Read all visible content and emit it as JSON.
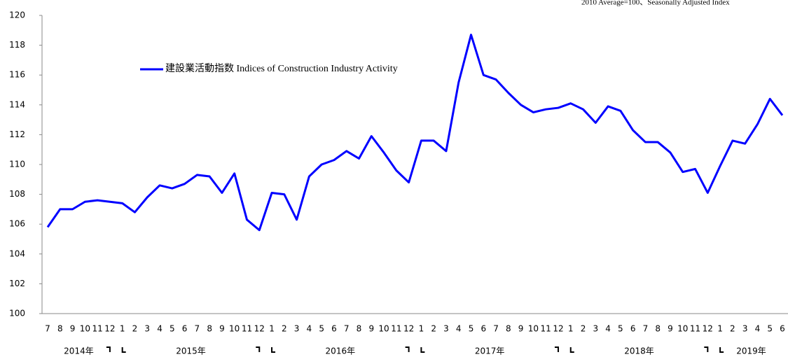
{
  "chart_data": {
    "type": "line",
    "note": "2010 Average=100、Seasonally Adjusted Index",
    "categories": [
      "7",
      "8",
      "9",
      "10",
      "11",
      "12",
      "1",
      "2",
      "3",
      "4",
      "5",
      "6",
      "7",
      "8",
      "9",
      "10",
      "11",
      "12",
      "1",
      "2",
      "3",
      "4",
      "5",
      "6",
      "7",
      "8",
      "9",
      "10",
      "11",
      "12",
      "1",
      "2",
      "3",
      "4",
      "5",
      "6",
      "7",
      "8",
      "9",
      "10",
      "11",
      "12",
      "1",
      "2",
      "3",
      "4",
      "5",
      "6",
      "7",
      "8",
      "9",
      "10",
      "11",
      "12",
      "1",
      "2",
      "3",
      "4",
      "5",
      "6"
    ],
    "year_labels": [
      "2014年",
      "2015年",
      "2016年",
      "2017年",
      "2018年",
      "2019年"
    ],
    "series": [
      {
        "name": "建設業活動指数  Indices of Construction Industry Activity",
        "color": "#0000ff",
        "values": [
          105.8,
          107.0,
          107.0,
          107.5,
          107.6,
          107.5,
          107.4,
          106.8,
          107.8,
          108.6,
          108.4,
          108.7,
          109.3,
          109.2,
          108.1,
          109.4,
          106.3,
          105.6,
          108.1,
          108.0,
          106.3,
          109.2,
          110.0,
          110.3,
          110.9,
          110.4,
          111.9,
          110.8,
          109.6,
          108.8,
          111.6,
          111.6,
          110.9,
          115.5,
          118.7,
          116.0,
          115.7,
          114.8,
          114.0,
          113.5,
          113.7,
          113.8,
          114.1,
          113.7,
          112.8,
          113.9,
          113.6,
          112.3,
          111.5,
          111.5,
          110.8,
          109.5,
          109.7,
          108.1,
          109.9,
          111.6,
          111.4,
          112.7,
          114.4,
          113.3
        ]
      }
    ],
    "ylim": [
      100,
      120
    ],
    "yticks": [
      100,
      102,
      104,
      106,
      108,
      110,
      112,
      114,
      116,
      118,
      120
    ],
    "grid": false
  }
}
